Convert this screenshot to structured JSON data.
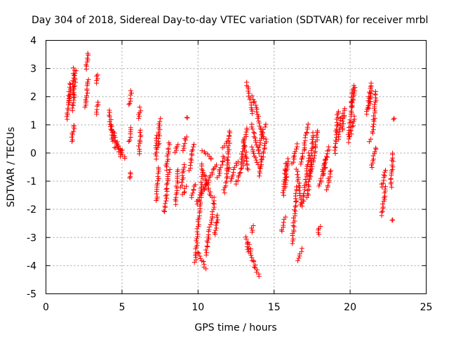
{
  "chart_data": {
    "type": "scatter",
    "title": "Day 304 of 2018, Sidereal Day-to-day VTEC variation (SDTVAR) for receiver mrbl",
    "xlabel": "GPS time / hours",
    "ylabel": "SDTVAR / TECUs",
    "xlim": [
      0,
      25
    ],
    "ylim": [
      -5,
      4
    ],
    "x_ticks": [
      0,
      5,
      10,
      15,
      20,
      25
    ],
    "y_ticks": [
      -5,
      -4,
      -3,
      -2,
      -1,
      0,
      1,
      2,
      3,
      4
    ],
    "grid": true,
    "marker": "+",
    "color": "#ff0000",
    "tracks": [
      {
        "x0": 1.4,
        "y0": 1.2,
        "x1": 1.6,
        "y1": 2.5
      },
      {
        "x0": 1.5,
        "y0": 1.7,
        "x1": 1.65,
        "y1": 2.2
      },
      {
        "x0": 1.7,
        "y0": 0.4,
        "x1": 1.85,
        "y1": 1.0
      },
      {
        "x0": 1.75,
        "y0": 1.5,
        "x1": 1.85,
        "y1": 3.0
      },
      {
        "x0": 1.85,
        "y0": 2.0,
        "x1": 1.95,
        "y1": 2.9
      },
      {
        "x0": 2.6,
        "y0": 1.6,
        "x1": 2.8,
        "y1": 2.6
      },
      {
        "x0": 2.65,
        "y0": 3.0,
        "x1": 2.75,
        "y1": 3.55
      },
      {
        "x0": 3.3,
        "y0": 1.4,
        "x1": 3.4,
        "y1": 1.8
      },
      {
        "x0": 3.3,
        "y0": 2.5,
        "x1": 3.4,
        "y1": 2.8
      },
      {
        "x0": 4.15,
        "y0": 1.5,
        "x1": 4.4,
        "y1": 0.4
      },
      {
        "x0": 4.3,
        "y0": 1.0,
        "x1": 4.9,
        "y1": -0.1
      },
      {
        "x0": 4.4,
        "y0": 0.6,
        "x1": 5.2,
        "y1": -0.2
      },
      {
        "x0": 4.5,
        "y0": 0.2,
        "x1": 5.0,
        "y1": 0.1
      },
      {
        "x0": 5.5,
        "y0": 1.7,
        "x1": 5.6,
        "y1": 2.2
      },
      {
        "x0": 5.5,
        "y0": 0.4,
        "x1": 5.6,
        "y1": 0.9
      },
      {
        "x0": 5.5,
        "y0": -0.9,
        "x1": 5.6,
        "y1": -0.7
      },
      {
        "x0": 6.1,
        "y0": 1.2,
        "x1": 6.2,
        "y1": 1.6
      },
      {
        "x0": 6.1,
        "y0": 0.0,
        "x1": 6.25,
        "y1": 0.8
      },
      {
        "x0": 7.3,
        "y0": -1.7,
        "x1": 7.4,
        "y1": -0.5
      },
      {
        "x0": 7.4,
        "y0": 0.2,
        "x1": 7.5,
        "y1": 1.2
      },
      {
        "x0": 7.2,
        "y0": -0.2,
        "x1": 7.3,
        "y1": 0.6
      },
      {
        "x0": 7.8,
        "y0": -2.1,
        "x1": 8.1,
        "y1": -0.6
      },
      {
        "x0": 7.9,
        "y0": -0.6,
        "x1": 8.1,
        "y1": 0.35
      },
      {
        "x0": 8.5,
        "y0": -1.8,
        "x1": 8.7,
        "y1": -0.6
      },
      {
        "x0": 8.5,
        "y0": 0.0,
        "x1": 8.7,
        "y1": 0.3
      },
      {
        "x0": 8.9,
        "y0": -1.2,
        "x1": 9.1,
        "y1": -0.4
      },
      {
        "x0": 9.0,
        "y0": 0.1,
        "x1": 9.2,
        "y1": 0.6
      },
      {
        "x0": 9.0,
        "y0": -1.5,
        "x1": 9.2,
        "y1": -1.2
      },
      {
        "x0": 9.45,
        "y0": -0.6,
        "x1": 9.7,
        "y1": 0.3
      },
      {
        "x0": 9.6,
        "y0": -1.6,
        "x1": 9.8,
        "y1": -1.1
      },
      {
        "x0": 9.8,
        "y0": -3.9,
        "x1": 10.3,
        "y1": -0.7
      },
      {
        "x0": 9.9,
        "y0": -1.8,
        "x1": 10.6,
        "y1": -1.0
      },
      {
        "x0": 10.0,
        "y0": -3.5,
        "x1": 10.5,
        "y1": -4.1
      },
      {
        "x0": 10.2,
        "y0": -0.4,
        "x1": 10.9,
        "y1": -1.6
      },
      {
        "x0": 10.4,
        "y0": -1.3,
        "x1": 11.2,
        "y1": -0.4
      },
      {
        "x0": 10.5,
        "y0": -3.6,
        "x1": 11.1,
        "y1": -1.6
      },
      {
        "x0": 10.3,
        "y0": 0.1,
        "x1": 10.9,
        "y1": -0.2
      },
      {
        "x0": 11.1,
        "y0": -2.9,
        "x1": 11.3,
        "y1": -2.2
      },
      {
        "x0": 11.3,
        "y0": -0.9,
        "x1": 11.7,
        "y1": -0.1
      },
      {
        "x0": 11.7,
        "y0": -1.4,
        "x1": 12.0,
        "y1": -0.5
      },
      {
        "x0": 11.9,
        "y0": -0.6,
        "x1": 12.1,
        "y1": 0.8
      },
      {
        "x0": 11.6,
        "y0": 0.2,
        "x1": 11.9,
        "y1": 0.4
      },
      {
        "x0": 12.1,
        "y0": -1.0,
        "x1": 12.6,
        "y1": -0.3
      },
      {
        "x0": 12.5,
        "y0": -1.1,
        "x1": 13.0,
        "y1": -0.3
      },
      {
        "x0": 12.8,
        "y0": -0.4,
        "x1": 13.2,
        "y1": 0.9
      },
      {
        "x0": 13.0,
        "y0": 0.5,
        "x1": 13.3,
        "y1": -0.6
      },
      {
        "x0": 13.2,
        "y0": -3.0,
        "x1": 13.3,
        "y1": -3.5
      },
      {
        "x0": 13.3,
        "y0": -3.2,
        "x1": 13.6,
        "y1": -3.8
      },
      {
        "x0": 13.5,
        "y0": -2.8,
        "x1": 13.6,
        "y1": -2.6
      },
      {
        "x0": 13.6,
        "y0": -3.8,
        "x1": 14.0,
        "y1": -4.4
      },
      {
        "x0": 13.2,
        "y0": 2.5,
        "x1": 13.6,
        "y1": 1.4
      },
      {
        "x0": 13.6,
        "y0": 2.0,
        "x1": 14.3,
        "y1": 0.5
      },
      {
        "x0": 13.5,
        "y0": 1.0,
        "x1": 14.1,
        "y1": -0.1
      },
      {
        "x0": 13.5,
        "y0": 0.2,
        "x1": 14.0,
        "y1": -0.5
      },
      {
        "x0": 14.0,
        "y0": 0.2,
        "x1": 14.4,
        "y1": 1.0
      },
      {
        "x0": 14.0,
        "y0": -0.8,
        "x1": 14.5,
        "y1": 0.5
      },
      {
        "x0": 15.5,
        "y0": -2.8,
        "x1": 15.7,
        "y1": -2.3
      },
      {
        "x0": 15.6,
        "y0": -1.5,
        "x1": 15.8,
        "y1": -0.4
      },
      {
        "x0": 15.7,
        "y0": -1.2,
        "x1": 15.9,
        "y1": -0.2
      },
      {
        "x0": 16.2,
        "y0": -3.2,
        "x1": 16.5,
        "y1": -1.2
      },
      {
        "x0": 16.2,
        "y0": -0.4,
        "x1": 16.5,
        "y1": 0.3
      },
      {
        "x0": 16.5,
        "y0": -0.6,
        "x1": 16.8,
        "y1": -1.9
      },
      {
        "x0": 16.6,
        "y0": -3.8,
        "x1": 16.8,
        "y1": -3.4
      },
      {
        "x0": 16.8,
        "y0": -0.4,
        "x1": 17.2,
        "y1": 1.0
      },
      {
        "x0": 16.9,
        "y0": -1.8,
        "x1": 17.3,
        "y1": 0.0
      },
      {
        "x0": 17.2,
        "y0": -1.6,
        "x1": 17.6,
        "y1": 0.7
      },
      {
        "x0": 17.4,
        "y0": -0.8,
        "x1": 17.9,
        "y1": 0.8
      },
      {
        "x0": 17.9,
        "y0": -2.9,
        "x1": 18.0,
        "y1": -2.6
      },
      {
        "x0": 18.0,
        "y0": -1.2,
        "x1": 18.4,
        "y1": -0.2
      },
      {
        "x0": 18.2,
        "y0": -0.8,
        "x1": 18.6,
        "y1": 0.2
      },
      {
        "x0": 18.5,
        "y0": -1.3,
        "x1": 18.7,
        "y1": -0.6
      },
      {
        "x0": 19.0,
        "y0": 0.0,
        "x1": 19.2,
        "y1": 1.5
      },
      {
        "x0": 19.2,
        "y0": 0.5,
        "x1": 19.4,
        "y1": 1.3
      },
      {
        "x0": 19.5,
        "y0": 0.8,
        "x1": 19.6,
        "y1": 1.6
      },
      {
        "x0": 19.9,
        "y0": 0.4,
        "x1": 20.2,
        "y1": 2.4
      },
      {
        "x0": 20.1,
        "y0": 1.6,
        "x1": 20.3,
        "y1": 2.3
      },
      {
        "x0": 20.0,
        "y0": 0.6,
        "x1": 20.3,
        "y1": 1.3
      },
      {
        "x0": 21.1,
        "y0": 1.4,
        "x1": 21.4,
        "y1": 2.5
      },
      {
        "x0": 21.2,
        "y0": 1.6,
        "x1": 21.4,
        "y1": 2.2
      },
      {
        "x0": 21.5,
        "y0": 0.7,
        "x1": 21.7,
        "y1": 2.2
      },
      {
        "x0": 21.4,
        "y0": -0.5,
        "x1": 21.7,
        "y1": 0.2
      },
      {
        "x0": 21.3,
        "y0": 0.4,
        "x1": 21.4,
        "y1": 0.5
      },
      {
        "x0": 22.1,
        "y0": -2.2,
        "x1": 22.3,
        "y1": -1.2
      },
      {
        "x0": 22.1,
        "y0": -1.2,
        "x1": 22.3,
        "y1": -0.6
      },
      {
        "x0": 22.7,
        "y0": -1.2,
        "x1": 22.8,
        "y1": 0.0
      },
      {
        "x0": 22.8,
        "y0": -2.4,
        "x1": 22.8,
        "y1": -2.4
      },
      {
        "x0": 22.8,
        "y0": 1.2,
        "x1": 22.9,
        "y1": 1.25
      },
      {
        "x0": 9.3,
        "y0": 1.25,
        "x1": 9.3,
        "y1": 1.25
      }
    ]
  }
}
